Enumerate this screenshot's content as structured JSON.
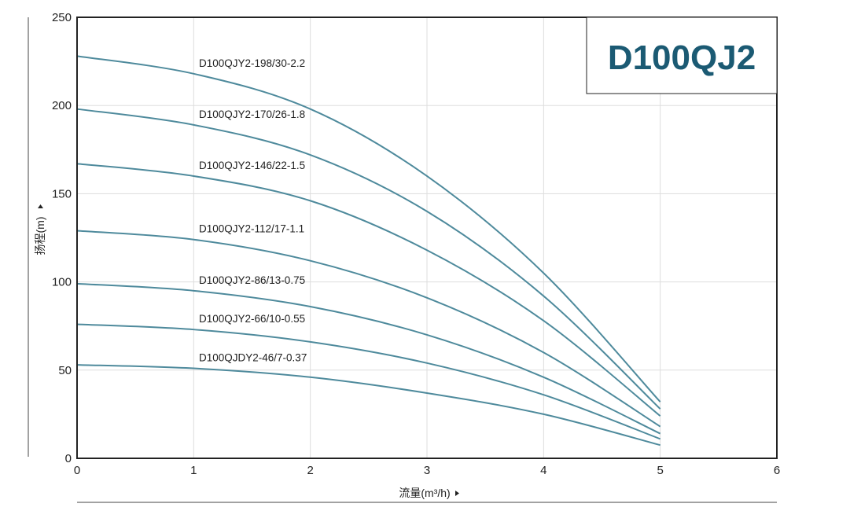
{
  "chart_data": {
    "type": "line",
    "title": "D100QJ2",
    "xlabel": "流量(m³/h)",
    "ylabel": "扬程(m)",
    "xlim": [
      0,
      6
    ],
    "ylim": [
      0,
      250
    ],
    "xticks": [
      "0",
      "1",
      "2",
      "3",
      "4",
      "5",
      "6"
    ],
    "yticks": [
      "0",
      "50",
      "100",
      "150",
      "200",
      "250"
    ],
    "grid": true,
    "x": [
      0,
      1,
      2,
      3,
      4,
      5
    ],
    "series": [
      {
        "name": "D100QJY2-198/30-2.2",
        "values": [
          228,
          218,
          198,
          160,
          105,
          32
        ]
      },
      {
        "name": "D100QJY2-170/26-1.8",
        "values": [
          198,
          189,
          172,
          140,
          92,
          28
        ]
      },
      {
        "name": "D100QJY2-146/22-1.5",
        "values": [
          167,
          160,
          146,
          118,
          78,
          24
        ]
      },
      {
        "name": "D100QJY2-112/17-1.1",
        "values": [
          129,
          124,
          112,
          91,
          60,
          18
        ]
      },
      {
        "name": "D100QJY2-86/13-0.75",
        "values": [
          99,
          95,
          86,
          70,
          46,
          14
        ]
      },
      {
        "name": "D100QJY2-66/10-0.55",
        "values": [
          76,
          73,
          66,
          54,
          36,
          11
        ]
      },
      {
        "name": "D100QJDY2-46/7-0.37",
        "values": [
          53,
          51,
          46,
          37,
          25,
          7.5
        ]
      }
    ],
    "colors": {
      "curve": "#4e8a9c",
      "grid": "#dddddd",
      "axis": "#222222",
      "title": "#1b5a73"
    }
  }
}
